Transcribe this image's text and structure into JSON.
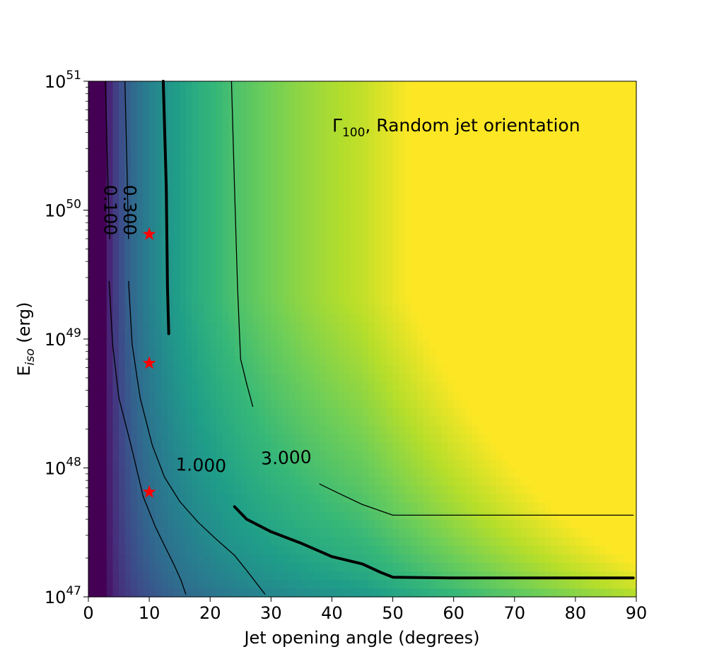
{
  "chart_data": {
    "type": "heatmap",
    "colormap": "viridis",
    "annotation": {
      "symbol": "Γ",
      "subscript": "100",
      "text": ", Random jet orientation"
    },
    "xaxis": {
      "label": "Jet opening angle (degrees)",
      "range": [
        0,
        90
      ],
      "ticks": [
        0,
        10,
        20,
        30,
        40,
        50,
        60,
        70,
        80,
        90
      ],
      "tick_labels": [
        "0",
        "10",
        "20",
        "30",
        "40",
        "50",
        "60",
        "70",
        "80",
        "90"
      ]
    },
    "yaxis": {
      "label_main": "E",
      "label_sub": "iso",
      "label_unit": " (erg)",
      "scale": "log",
      "range": [
        1e+47,
        1e+51
      ],
      "tick_base": "10",
      "tick_exponents": [
        "47",
        "48",
        "49",
        "50",
        "51"
      ]
    },
    "contours": [
      {
        "level": 0.1,
        "label": "0.100",
        "linewidth": "thin",
        "segments": [
          [
            [
              2.8,
              1e+51
            ],
            [
              3.1,
              2.5e+50
            ],
            [
              3.5,
              6e+49
            ]
          ],
          [
            [
              3.4,
              2.8e+49
            ],
            [
              4.0,
              9e+48
            ],
            [
              5.0,
              3.5e+48
            ],
            [
              7.0,
              1.5e+48
            ],
            [
              9.0,
              6e+47
            ],
            [
              11.0,
              3.5e+47
            ],
            [
              12.5,
              2.5e+47
            ],
            [
              14.0,
              1.8e+47
            ],
            [
              15.2,
              1.35e+47
            ],
            [
              16.0,
              1.05e+47
            ]
          ]
        ]
      },
      {
        "level": 0.3,
        "label": "0.300",
        "linewidth": "thin",
        "segments": [
          [
            [
              6.0,
              1e+51
            ],
            [
              6.3,
              2.5e+50
            ],
            [
              6.6,
              6e+49
            ]
          ],
          [
            [
              6.6,
              2.8e+49
            ],
            [
              7.2,
              9e+48
            ],
            [
              8.5,
              3.5e+48
            ],
            [
              10.5,
              1.5e+48
            ],
            [
              12.5,
              8.5e+47
            ],
            [
              15.0,
              5.5e+47
            ],
            [
              18.0,
              3.8e+47
            ],
            [
              21.0,
              2.8e+47
            ],
            [
              24.0,
              2.1e+47
            ],
            [
              26.0,
              1.6e+47
            ],
            [
              29.0,
              1.05e+47
            ]
          ]
        ]
      },
      {
        "level": 1.0,
        "label": "1.000",
        "linewidth": "thick",
        "segments": [
          [
            [
              12.3,
              1e+51
            ],
            [
              12.8,
              1.5e+50
            ],
            [
              13.0,
              2.5e+49
            ],
            [
              13.2,
              1.1e+49
            ]
          ],
          [
            [
              24.0,
              5e+47
            ],
            [
              26.0,
              4e+47
            ],
            [
              30.0,
              3.2e+47
            ],
            [
              35.0,
              2.6e+47
            ],
            [
              40.0,
              2.05e+47
            ],
            [
              45.0,
              1.8e+47
            ],
            [
              48.0,
              1.55e+47
            ],
            [
              50.0,
              1.42e+47
            ],
            [
              60.0,
              1.4e+47
            ],
            [
              70.0,
              1.4e+47
            ],
            [
              80.0,
              1.4e+47
            ],
            [
              89.5,
              1.4e+47
            ]
          ]
        ]
      },
      {
        "level": 3.0,
        "label": "3.000",
        "linewidth": "thin",
        "segments": [
          [
            [
              23.5,
              1e+51
            ],
            [
              24.0,
              1.5e+50
            ],
            [
              24.5,
              2.5e+49
            ],
            [
              25.0,
              7e+48
            ],
            [
              26.0,
              4.5e+48
            ],
            [
              27.0,
              3e+48
            ]
          ],
          [
            [
              38.0,
              7.5e+47
            ],
            [
              41.0,
              6.4e+47
            ],
            [
              45.0,
              5.2e+47
            ],
            [
              50.0,
              4.3e+47
            ],
            [
              60.0,
              4.3e+47
            ],
            [
              70.0,
              4.3e+47
            ],
            [
              80.0,
              4.3e+47
            ],
            [
              89.5,
              4.3e+47
            ]
          ]
        ]
      }
    ],
    "contour_labels": [
      {
        "text": "0.100",
        "x": 3.6,
        "y": 1e+50,
        "rotation": 90
      },
      {
        "text": "0.300",
        "x": 6.8,
        "y": 1e+50,
        "rotation": 90
      },
      {
        "text": "1.000",
        "x": 18.5,
        "y": 1.05e+48,
        "rotation": 2
      },
      {
        "text": "3.000",
        "x": 32.5,
        "y": 1.2e+48,
        "rotation": -2
      }
    ],
    "markers": {
      "symbol": "star",
      "color": "#ff0000",
      "points": [
        [
          10,
          6.5e+49
        ],
        [
          10,
          6.5e+48
        ],
        [
          10,
          6.5e+47
        ]
      ]
    }
  }
}
